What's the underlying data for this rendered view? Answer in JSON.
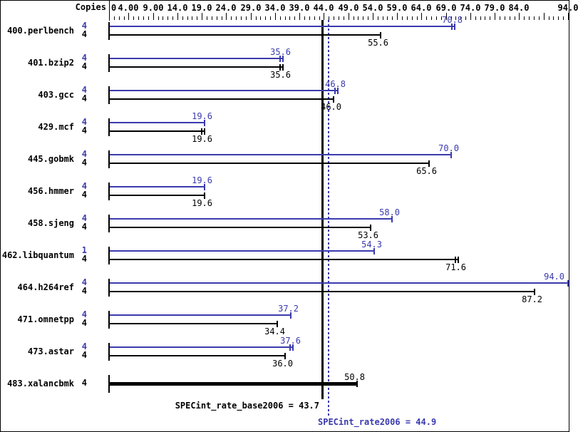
{
  "colors": {
    "peak_blue": "#3a3aae",
    "base_black": "#000000",
    "background": "#ffffff"
  },
  "header": {
    "copies_label": "Copies"
  },
  "axis": {
    "min": 0,
    "max": 94.3,
    "minor_tick_step": 1,
    "labeled_ticks": [
      {
        "value": 0,
        "label": "0"
      },
      {
        "value": 4,
        "label": "4.00"
      },
      {
        "value": 9,
        "label": "9.00"
      },
      {
        "value": 14,
        "label": "14.0"
      },
      {
        "value": 19,
        "label": "19.0"
      },
      {
        "value": 24,
        "label": "24.0"
      },
      {
        "value": 29,
        "label": "29.0"
      },
      {
        "value": 34,
        "label": "34.0"
      },
      {
        "value": 39,
        "label": "39.0"
      },
      {
        "value": 44,
        "label": "44.0"
      },
      {
        "value": 49,
        "label": "49.0"
      },
      {
        "value": 54,
        "label": "54.0"
      },
      {
        "value": 59,
        "label": "59.0"
      },
      {
        "value": 64,
        "label": "64.0"
      },
      {
        "value": 69,
        "label": "69.0"
      },
      {
        "value": 74,
        "label": "74.0"
      },
      {
        "value": 79,
        "label": "79.0"
      },
      {
        "value": 84,
        "label": "84.0"
      },
      {
        "value": 89,
        "label": ""
      },
      {
        "value": 94,
        "label": "94.0"
      }
    ]
  },
  "benchmarks": [
    {
      "name": "400.perlbench",
      "bars": [
        {
          "type": "peak",
          "copies": "4",
          "value": 70.8,
          "label": "70.8",
          "cap": "double",
          "label_above": true
        },
        {
          "type": "base",
          "copies": "4",
          "value": 55.6,
          "label": "55.6",
          "cap": "single",
          "label_above": false
        }
      ]
    },
    {
      "name": "401.bzip2",
      "bars": [
        {
          "type": "peak",
          "copies": "4",
          "value": 35.6,
          "label": "35.6",
          "cap": "double",
          "label_above": true
        },
        {
          "type": "base",
          "copies": "4",
          "value": 35.6,
          "label": "35.6",
          "cap": "double",
          "label_above": false
        }
      ]
    },
    {
      "name": "403.gcc",
      "bars": [
        {
          "type": "peak",
          "copies": "4",
          "value": 46.8,
          "label": "46.8",
          "cap": "double",
          "label_above": true
        },
        {
          "type": "base",
          "copies": "4",
          "value": 46.0,
          "label": "46.0",
          "cap": "single",
          "label_above": false
        }
      ]
    },
    {
      "name": "429.mcf",
      "bars": [
        {
          "type": "peak",
          "copies": "4",
          "value": 19.6,
          "label": "19.6",
          "cap": "single",
          "label_above": true
        },
        {
          "type": "base",
          "copies": "4",
          "value": 19.6,
          "label": "19.6",
          "cap": "double",
          "label_above": false
        }
      ]
    },
    {
      "name": "445.gobmk",
      "bars": [
        {
          "type": "peak",
          "copies": "4",
          "value": 70.0,
          "label": "70.0",
          "cap": "single",
          "label_above": true
        },
        {
          "type": "base",
          "copies": "4",
          "value": 65.6,
          "label": "65.6",
          "cap": "single",
          "label_above": false
        }
      ]
    },
    {
      "name": "456.hmmer",
      "bars": [
        {
          "type": "peak",
          "copies": "4",
          "value": 19.6,
          "label": "19.6",
          "cap": "single",
          "label_above": true
        },
        {
          "type": "base",
          "copies": "4",
          "value": 19.6,
          "label": "19.6",
          "cap": "single",
          "label_above": false
        }
      ]
    },
    {
      "name": "458.sjeng",
      "bars": [
        {
          "type": "peak",
          "copies": "4",
          "value": 58.0,
          "label": "58.0",
          "cap": "single",
          "label_above": true
        },
        {
          "type": "base",
          "copies": "4",
          "value": 53.6,
          "label": "53.6",
          "cap": "single",
          "label_above": false
        }
      ]
    },
    {
      "name": "462.libquantum",
      "bars": [
        {
          "type": "peak",
          "copies": "1",
          "value": 54.3,
          "label": "54.3",
          "cap": "single",
          "label_above": true
        },
        {
          "type": "base",
          "copies": "4",
          "value": 71.6,
          "label": "71.6",
          "cap": "double",
          "label_above": false
        }
      ]
    },
    {
      "name": "464.h264ref",
      "bars": [
        {
          "type": "peak",
          "copies": "4",
          "value": 94.0,
          "label": "94.0",
          "cap": "single",
          "label_above": true
        },
        {
          "type": "base",
          "copies": "4",
          "value": 87.2,
          "label": "87.2",
          "cap": "single",
          "label_above": false
        }
      ]
    },
    {
      "name": "471.omnetpp",
      "bars": [
        {
          "type": "peak",
          "copies": "4",
          "value": 37.2,
          "label": "37.2",
          "cap": "single",
          "label_above": true
        },
        {
          "type": "base",
          "copies": "4",
          "value": 34.4,
          "label": "34.4",
          "cap": "single",
          "label_above": false
        }
      ]
    },
    {
      "name": "473.astar",
      "bars": [
        {
          "type": "peak",
          "copies": "4",
          "value": 37.6,
          "label": "37.6",
          "cap": "double",
          "label_above": true
        },
        {
          "type": "base",
          "copies": "4",
          "value": 36.0,
          "label": "36.0",
          "cap": "single",
          "label_above": false
        }
      ]
    },
    {
      "name": "483.xalancbmk",
      "bars": [
        {
          "type": "base",
          "copies": "4",
          "value": 50.8,
          "label": "50.8",
          "cap": "single",
          "label_above": true,
          "bold": true
        }
      ]
    }
  ],
  "means": [
    {
      "name": "SPECint_rate_base2006",
      "value": 43.7,
      "label": "SPECint_rate_base2006 = 43.7",
      "line_style": "solid",
      "color_role": "base"
    },
    {
      "name": "SPECint_rate2006",
      "value": 44.9,
      "label": "SPECint_rate2006 = 44.9",
      "line_style": "dotted",
      "color_role": "peak"
    }
  ],
  "chart_data": {
    "type": "bar",
    "orientation": "horizontal",
    "title": "",
    "xlabel": "",
    "ylabel": "Copies",
    "xlim": [
      0,
      94.3
    ],
    "grid": false,
    "legend_position": "none",
    "x_tick_labels": [
      "0",
      "4.00",
      "9.00",
      "14.0",
      "19.0",
      "24.0",
      "29.0",
      "34.0",
      "39.0",
      "44.0",
      "49.0",
      "54.0",
      "59.0",
      "64.0",
      "69.0",
      "74.0",
      "79.0",
      "84.0",
      "94.0"
    ],
    "categories": [
      "400.perlbench",
      "401.bzip2",
      "403.gcc",
      "429.mcf",
      "445.gobmk",
      "456.hmmer",
      "458.sjeng",
      "462.libquantum",
      "464.h264ref",
      "471.omnetpp",
      "473.astar",
      "483.xalancbmk"
    ],
    "series": [
      {
        "name": "peak (SPECint_rate2006)",
        "color": "#3a3aae",
        "copies": [
          4,
          4,
          4,
          4,
          4,
          4,
          4,
          1,
          4,
          4,
          4,
          null
        ],
        "values": [
          70.8,
          35.6,
          46.8,
          19.6,
          70.0,
          19.6,
          58.0,
          54.3,
          94.0,
          37.2,
          37.6,
          null
        ]
      },
      {
        "name": "base (SPECint_rate_base2006)",
        "color": "#000000",
        "copies": [
          4,
          4,
          4,
          4,
          4,
          4,
          4,
          4,
          4,
          4,
          4,
          4
        ],
        "values": [
          55.6,
          35.6,
          46.0,
          19.6,
          65.6,
          19.6,
          53.6,
          71.6,
          87.2,
          34.4,
          36.0,
          50.8
        ]
      }
    ],
    "reference_lines": [
      {
        "label": "SPECint_rate_base2006 = 43.7",
        "value": 43.7,
        "style": "solid",
        "color": "#000000"
      },
      {
        "label": "SPECint_rate2006 = 44.9",
        "value": 44.9,
        "style": "dotted",
        "color": "#3a3aae"
      }
    ]
  }
}
